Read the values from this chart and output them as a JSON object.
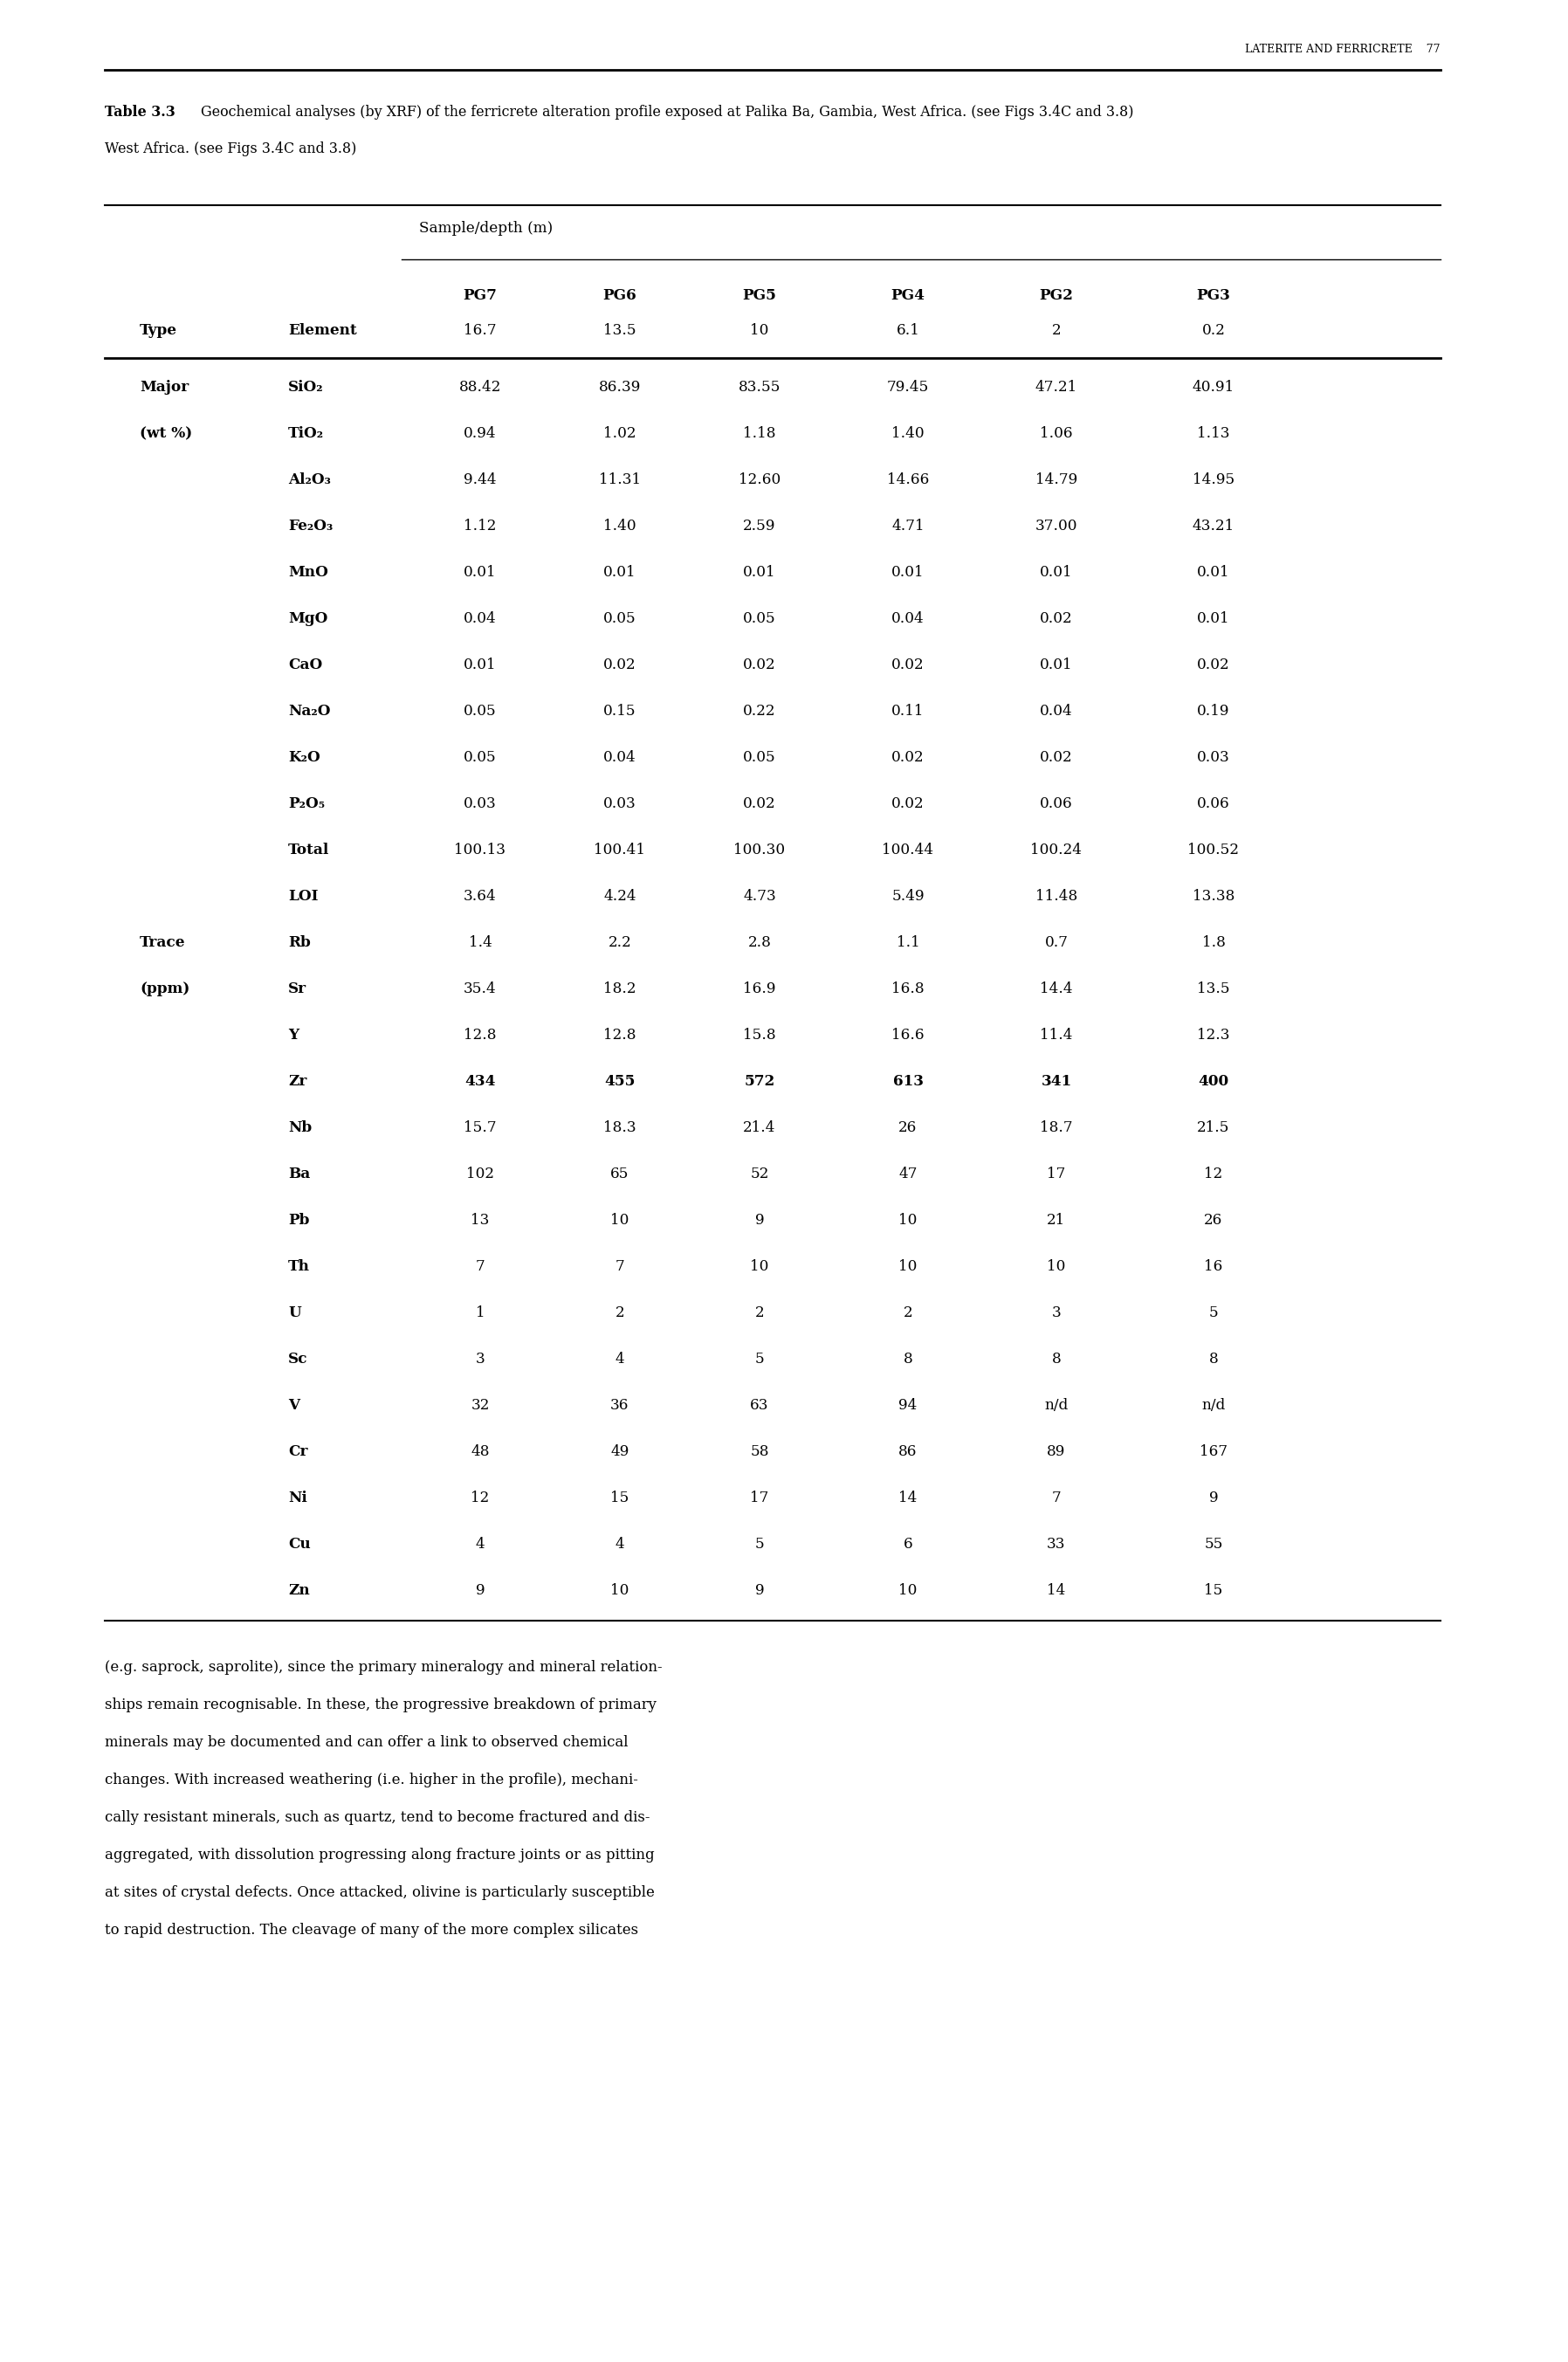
{
  "page_header": "LATERITE AND FERRICRETE    77",
  "table_caption_bold": "Table 3.3",
  "table_caption_normal": " Geochemical analyses (by XRF) of the ferricrete alteration profile exposed at Palika Ba, Gambia, West Africa. (see Figs 3.4C and 3.8)",
  "sample_depth_label": "Sample/depth (m)",
  "col_headers_row1": [
    "",
    "",
    "PG7",
    "PG6",
    "PG5",
    "PG4",
    "PG2",
    "PG3"
  ],
  "col_headers_row2": [
    "Type",
    "Element",
    "16.7",
    "13.5",
    "10",
    "6.1",
    "2",
    "0.2"
  ],
  "rows": [
    [
      "Major",
      "SiO₂",
      "88.42",
      "86.39",
      "83.55",
      "79.45",
      "47.21",
      "40.91"
    ],
    [
      "(wt %)",
      "TiO₂",
      "0.94",
      "1.02",
      "1.18",
      "1.40",
      "1.06",
      "1.13"
    ],
    [
      "",
      "Al₂O₃",
      "9.44",
      "11.31",
      "12.60",
      "14.66",
      "14.79",
      "14.95"
    ],
    [
      "",
      "Fe₂O₃",
      "1.12",
      "1.40",
      "2.59",
      "4.71",
      "37.00",
      "43.21"
    ],
    [
      "",
      "MnO",
      "0.01",
      "0.01",
      "0.01",
      "0.01",
      "0.01",
      "0.01"
    ],
    [
      "",
      "MgO",
      "0.04",
      "0.05",
      "0.05",
      "0.04",
      "0.02",
      "0.01"
    ],
    [
      "",
      "CaO",
      "0.01",
      "0.02",
      "0.02",
      "0.02",
      "0.01",
      "0.02"
    ],
    [
      "",
      "Na₂O",
      "0.05",
      "0.15",
      "0.22",
      "0.11",
      "0.04",
      "0.19"
    ],
    [
      "",
      "K₂O",
      "0.05",
      "0.04",
      "0.05",
      "0.02",
      "0.02",
      "0.03"
    ],
    [
      "",
      "P₂O₅",
      "0.03",
      "0.03",
      "0.02",
      "0.02",
      "0.06",
      "0.06"
    ],
    [
      "",
      "Total",
      "100.13",
      "100.41",
      "100.30",
      "100.44",
      "100.24",
      "100.52"
    ],
    [
      "",
      "LOI",
      "3.64",
      "4.24",
      "4.73",
      "5.49",
      "11.48",
      "13.38"
    ],
    [
      "Trace",
      "Rb",
      "1.4",
      "2.2",
      "2.8",
      "1.1",
      "0.7",
      "1.8"
    ],
    [
      "(ppm)",
      "Sr",
      "35.4",
      "18.2",
      "16.9",
      "16.8",
      "14.4",
      "13.5"
    ],
    [
      "",
      "Y",
      "12.8",
      "12.8",
      "15.8",
      "16.6",
      "11.4",
      "12.3"
    ],
    [
      "",
      "Zr",
      "434",
      "455",
      "572",
      "613",
      "341",
      "400"
    ],
    [
      "",
      "Nb",
      "15.7",
      "18.3",
      "21.4",
      "26",
      "18.7",
      "21.5"
    ],
    [
      "",
      "Ba",
      "102",
      "65",
      "52",
      "47",
      "17",
      "12"
    ],
    [
      "",
      "Pb",
      "13",
      "10",
      "9",
      "10",
      "21",
      "26"
    ],
    [
      "",
      "Th",
      "7",
      "7",
      "10",
      "10",
      "10",
      "16"
    ],
    [
      "",
      "U",
      "1",
      "2",
      "2",
      "2",
      "3",
      "5"
    ],
    [
      "",
      "Sc",
      "3",
      "4",
      "5",
      "8",
      "8",
      "8"
    ],
    [
      "",
      "V",
      "32",
      "36",
      "63",
      "94",
      "n/d",
      "n/d"
    ],
    [
      "",
      "Cr",
      "48",
      "49",
      "58",
      "86",
      "89",
      "167"
    ],
    [
      "",
      "Ni",
      "12",
      "15",
      "17",
      "14",
      "7",
      "9"
    ],
    [
      "",
      "Cu",
      "4",
      "4",
      "5",
      "6",
      "33",
      "55"
    ],
    [
      "",
      "Zn",
      "9",
      "10",
      "9",
      "10",
      "14",
      "15"
    ]
  ],
  "footer_text": "(e.g. saprock, saprolite), since the primary mineralogy and mineral relationships remain recognisable. In these, the progressive breakdown of primary minerals may be documented and can offer a link to observed chemical changes. With increased weathering (i.e. higher in the profile), mechanically resistant minerals, such as quartz, tend to become fractured and disaggregated, with dissolution progressing along fracture joints or as pitting at sites of crystal defects. Once attacked, olivine is particularly susceptible to rapid destruction. The cleavage of many of the more complex silicates",
  "bold_elements": [
    "SiO₂",
    "TiO₂",
    "Al₂O₃",
    "Fe₂O₃",
    "MnO",
    "MgO",
    "CaO",
    "Na₂O",
    "K₂O",
    "P₂O₅",
    "Total",
    "LOI",
    "Rb",
    "Sr",
    "Y",
    "Zr",
    "Nb",
    "Ba",
    "Pb",
    "Th",
    "U",
    "Sc",
    "V",
    "Cr",
    "Ni",
    "Cu",
    "Zn"
  ],
  "bold_zr_row": true,
  "background_color": "#ffffff",
  "text_color": "#000000",
  "font_size": 13.5,
  "header_font_size": 13.5
}
